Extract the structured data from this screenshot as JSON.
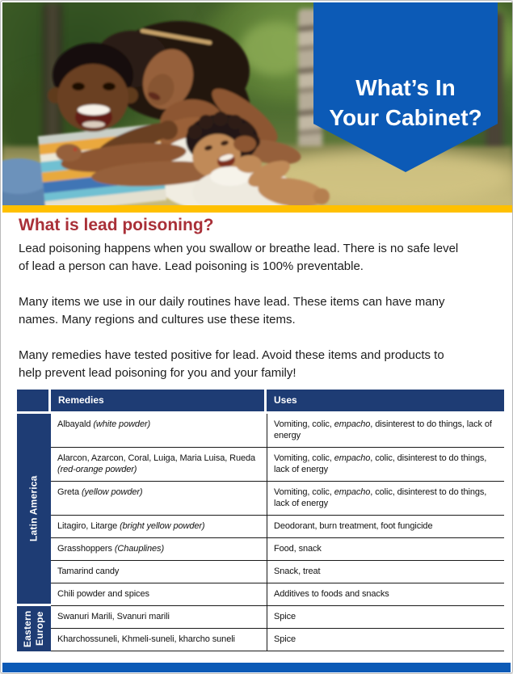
{
  "theme": {
    "accent-blue": "#0C5AB6",
    "navy": "#1E3C74",
    "heading-red": "#A93038",
    "gold": "#FFC000",
    "line": "#1a1a1a"
  },
  "banner": {
    "title": "What’s In\nYour Cabinet?"
  },
  "heading": "What is lead poisoning?",
  "paragraphs": [
    [
      "Lead poisoning happens when you swallow or breathe lead. There is no safe level",
      "of lead a person can have.  Lead poisoning is 100% preventable."
    ],
    [
      "Many items we use in our daily routines have lead. These items can have many",
      "names. Many regions and cultures use these items."
    ],
    [
      "Many remedies have tested positive for lead. Avoid these items and products to",
      "help prevent lead poisoning for you and your family!"
    ]
  ],
  "table": {
    "headers": {
      "region": "",
      "remedies": "Remedies",
      "uses": "Uses"
    },
    "groups": [
      {
        "region": "Latin America",
        "rows": [
          {
            "remedy": [
              {
                "t": "Albayald "
              },
              {
                "t": "(white powder)",
                "i": true
              }
            ],
            "uses": [
              {
                "t": "Vomiting, colic, "
              },
              {
                "t": "empacho",
                "i": true
              },
              {
                "t": ", disinterest to do things, lack of energy"
              }
            ]
          },
          {
            "remedy": [
              {
                "t": "Alarcon, Azarcon, Coral, Luiga, Maria Luisa, Rueda "
              },
              {
                "t": "(red-orange powder)",
                "i": true
              }
            ],
            "uses": [
              {
                "t": "Vomiting, colic, "
              },
              {
                "t": "empacho",
                "i": true
              },
              {
                "t": ", colic, disinterest to do things, lack of energy"
              }
            ]
          },
          {
            "remedy": [
              {
                "t": "Greta "
              },
              {
                "t": "(yellow powder)",
                "i": true
              }
            ],
            "uses": [
              {
                "t": "Vomiting, colic, "
              },
              {
                "t": "empacho",
                "i": true
              },
              {
                "t": ", colic, disinterest to do things, lack of energy"
              }
            ]
          },
          {
            "remedy": [
              {
                "t": "Litagiro, Litarge "
              },
              {
                "t": "(bright yellow powder)",
                "i": true
              }
            ],
            "uses": [
              {
                "t": "Deodorant, burn treatment, foot fungicide"
              }
            ]
          },
          {
            "remedy": [
              {
                "t": "Grasshoppers "
              },
              {
                "t": "(Chauplines)",
                "i": true
              }
            ],
            "uses": [
              {
                "t": "Food, snack"
              }
            ]
          },
          {
            "remedy": [
              {
                "t": "Tamarind candy"
              }
            ],
            "uses": [
              {
                "t": "Snack, treat"
              }
            ]
          },
          {
            "remedy": [
              {
                "t": "Chili powder and spices"
              }
            ],
            "uses": [
              {
                "t": "Additives to foods and snacks"
              }
            ]
          }
        ]
      },
      {
        "region": "Eastern\nEurope",
        "rows": [
          {
            "remedy": [
              {
                "t": "Swanuri Marili, Svanuri marili"
              }
            ],
            "uses": [
              {
                "t": "Spice"
              }
            ]
          },
          {
            "remedy": [
              {
                "t": "Kharchossuneli, Khmeli-suneli, kharcho suneli"
              }
            ],
            "uses": [
              {
                "t": "Spice"
              }
            ]
          }
        ]
      }
    ]
  }
}
